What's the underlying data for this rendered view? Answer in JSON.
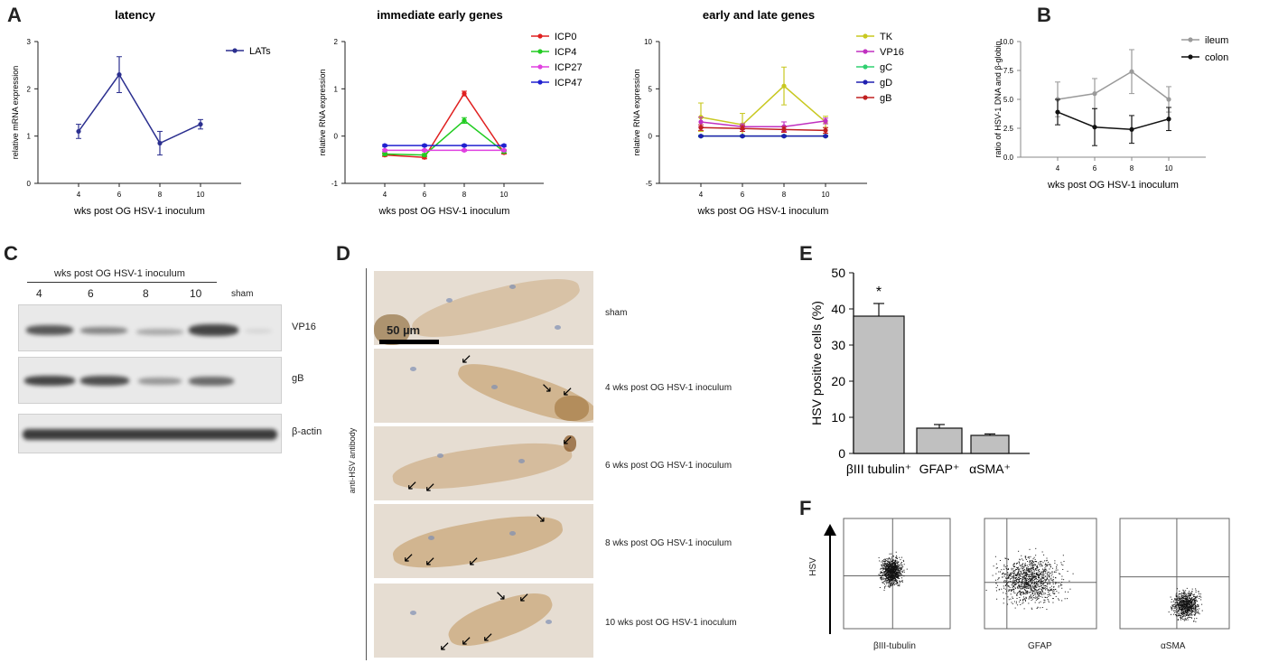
{
  "panel_letters": {
    "a": "A",
    "b": "B",
    "c": "C",
    "d": "D",
    "e": "E",
    "f": "F"
  },
  "chart_data": [
    {
      "id": "latency",
      "type": "line",
      "title": "latency",
      "xlabel": "wks post OG HSV-1 inoculum",
      "ylabel": "relative mRNA expression",
      "x": [
        4,
        6,
        8,
        10
      ],
      "xlim": [
        2,
        12
      ],
      "ylim": [
        0,
        3
      ],
      "x_ticks": [
        "4",
        "6",
        "8",
        "10"
      ],
      "y_ticks": [
        "0",
        "1",
        "2",
        "3"
      ],
      "series": [
        {
          "name": "LATs",
          "color": "#2b2f8f",
          "values": [
            1.1,
            2.3,
            0.85,
            1.25
          ],
          "errors": [
            0.15,
            0.38,
            0.25,
            0.1
          ]
        }
      ]
    },
    {
      "id": "ieg",
      "type": "line",
      "title": "immediate early genes",
      "xlabel": "wks post OG HSV-1 inoculum",
      "ylabel": "relative RNA expression",
      "x": [
        4,
        6,
        8,
        10
      ],
      "xlim": [
        2,
        12
      ],
      "ylim": [
        -1,
        2
      ],
      "x_ticks": [
        "4",
        "6",
        "8",
        "10"
      ],
      "y_ticks": [
        "-1",
        "0",
        "1",
        "2"
      ],
      "series": [
        {
          "name": "ICP0",
          "color": "#e02020",
          "values": [
            -0.4,
            -0.45,
            0.9,
            -0.35
          ],
          "errors": [
            0.03,
            0.03,
            0.05,
            0.03
          ]
        },
        {
          "name": "ICP4",
          "color": "#22cc22",
          "values": [
            -0.38,
            -0.4,
            0.33,
            -0.33
          ],
          "errors": [
            0.03,
            0.03,
            0.06,
            0.03
          ]
        },
        {
          "name": "ICP27",
          "color": "#e040e0",
          "values": [
            -0.3,
            -0.3,
            -0.3,
            -0.3
          ],
          "errors": [
            0.02,
            0.02,
            0.02,
            0.02
          ]
        },
        {
          "name": "ICP47",
          "color": "#2020d0",
          "values": [
            -0.2,
            -0.2,
            -0.2,
            -0.2
          ],
          "errors": [
            0.02,
            0.02,
            0.02,
            0.02
          ]
        }
      ]
    },
    {
      "id": "elg",
      "type": "line",
      "title": "early and late genes",
      "xlabel": "wks post OG HSV-1 inoculum",
      "ylabel": "relative RNA expression",
      "x": [
        4,
        6,
        8,
        10
      ],
      "xlim": [
        2,
        12
      ],
      "ylim": [
        -5,
        10
      ],
      "x_ticks": [
        "4",
        "6",
        "8",
        "10"
      ],
      "y_ticks": [
        "-5",
        "0",
        "5",
        "10"
      ],
      "series": [
        {
          "name": "TK",
          "color": "#c8c820",
          "values": [
            2.0,
            1.2,
            5.3,
            1.5
          ],
          "errors": [
            1.5,
            1.2,
            2.0,
            0.6
          ]
        },
        {
          "name": "VP16",
          "color": "#c030c0",
          "values": [
            1.5,
            1.0,
            1.0,
            1.6
          ],
          "errors": [
            0.5,
            0.3,
            0.5,
            0.3
          ]
        },
        {
          "name": "gC",
          "color": "#30d070",
          "values": [
            0.0,
            0.0,
            0.0,
            0.0
          ],
          "errors": [
            0.1,
            0.1,
            0.1,
            0.1
          ]
        },
        {
          "name": "gD",
          "color": "#2020b0",
          "values": [
            0.0,
            0.0,
            0.0,
            0.0
          ],
          "errors": [
            0.05,
            0.05,
            0.05,
            0.05
          ]
        },
        {
          "name": "gB",
          "color": "#c02020",
          "values": [
            0.9,
            0.8,
            0.7,
            0.6
          ],
          "errors": [
            0.3,
            0.3,
            0.3,
            0.3
          ]
        }
      ]
    },
    {
      "id": "dna",
      "type": "line",
      "title": "",
      "xlabel": "wks post OG HSV-1 inoculum",
      "ylabel": "ratio of HSV-1 DNA and β-globin",
      "x": [
        4,
        6,
        8,
        10
      ],
      "xlim": [
        2,
        12
      ],
      "ylim": [
        0,
        10
      ],
      "x_ticks": [
        "4",
        "6",
        "8",
        "10"
      ],
      "y_ticks": [
        "0.0",
        "2.5",
        "5.0",
        "7.5",
        "10.0"
      ],
      "series": [
        {
          "name": "ileum",
          "color": "#9a9a9a",
          "values": [
            5.0,
            5.5,
            7.4,
            5.0
          ],
          "errors": [
            1.5,
            1.3,
            1.9,
            1.1
          ]
        },
        {
          "name": "colon",
          "color": "#111111",
          "values": [
            3.9,
            2.6,
            2.4,
            3.3
          ],
          "errors": [
            1.1,
            1.6,
            1.2,
            1.0
          ]
        }
      ]
    },
    {
      "id": "hsvpos",
      "type": "bar",
      "title": "",
      "xlabel": "",
      "ylabel": "HSV positive cells (%)",
      "categories": [
        "βIII tubulin⁺",
        "GFAP⁺",
        "αSMA⁺"
      ],
      "values": [
        38,
        7,
        5
      ],
      "errors": [
        3.5,
        1.0,
        0.4
      ],
      "ylim": [
        0,
        50
      ],
      "y_ticks": [
        "0",
        "10",
        "20",
        "30",
        "40",
        "50"
      ],
      "annotations": [
        "*"
      ]
    }
  ],
  "blot": {
    "header": "wks post OG HSV-1 inoculum",
    "lanes": [
      "4",
      "6",
      "8",
      "10",
      "sham"
    ],
    "rows": [
      {
        "label": "VP16",
        "intensity": [
          0.8,
          0.55,
          0.35,
          0.9,
          0.1
        ]
      },
      {
        "label": "gB",
        "intensity": [
          0.9,
          0.85,
          0.45,
          0.7,
          0.05
        ]
      },
      {
        "label": "β-actin",
        "intensity": [
          0.95,
          0.95,
          0.95,
          0.95,
          0.95
        ]
      }
    ]
  },
  "micro": {
    "side_label": "anti-HSV antibody",
    "scale_label": "50 µm",
    "rows": [
      "sham",
      "4 wks post OG HSV-1 inoculum",
      "6 wks post OG HSV-1 inoculum",
      "8 wks post OG HSV-1 inoculum",
      "10 wks post OG HSV-1 inoculum"
    ]
  },
  "flow": {
    "ylabel": "HSV",
    "plots": [
      {
        "xlabel": "βIII-tubulin"
      },
      {
        "xlabel": "GFAP"
      },
      {
        "xlabel": "αSMA"
      }
    ]
  }
}
